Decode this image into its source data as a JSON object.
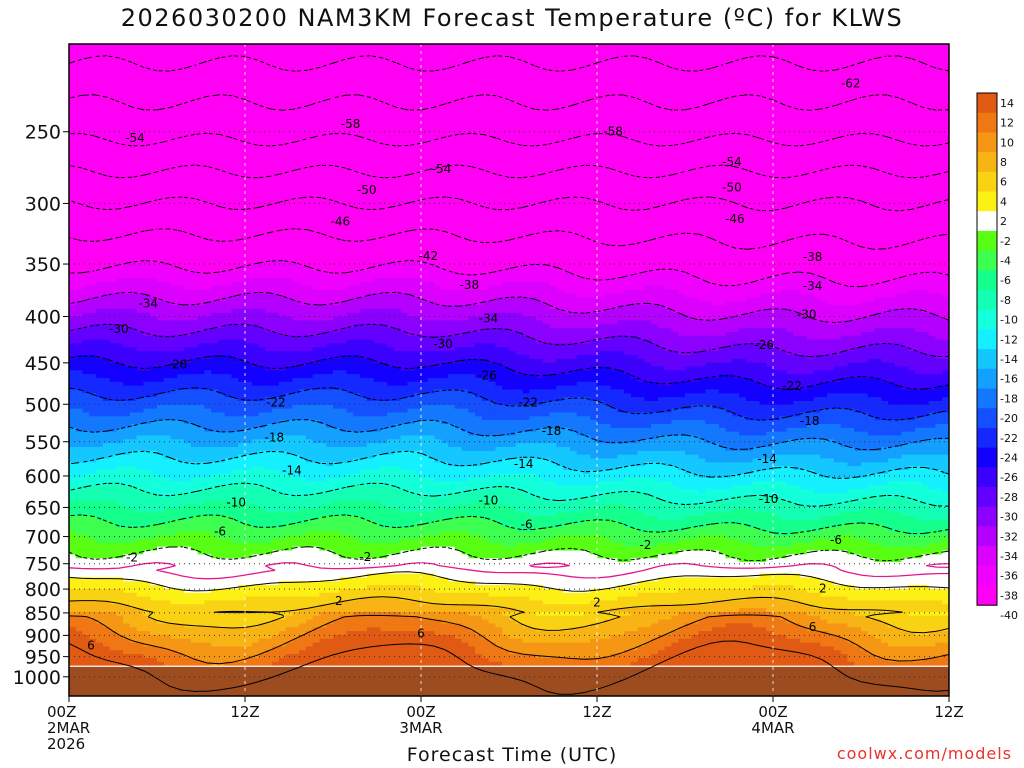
{
  "title": "2026030200 NAM3KM Forecast Temperature (ºC) for KLWS",
  "credit": "coolwx.com/models",
  "chart_data": {
    "type": "heatmap",
    "title": "2026030200 NAM3KM Forecast Temperature (ºC) for KLWS",
    "xlabel": "Forecast Time (UTC)",
    "ylabel": "",
    "x_range_hours": [
      0,
      60
    ],
    "x_ticks": [
      {
        "hour": 0,
        "lines": [
          "00Z",
          "2MAR",
          "2026"
        ]
      },
      {
        "hour": 12,
        "lines": [
          "12Z"
        ]
      },
      {
        "hour": 24,
        "lines": [
          "00Z",
          "3MAR"
        ]
      },
      {
        "hour": 36,
        "lines": [
          "12Z"
        ]
      },
      {
        "hour": 48,
        "lines": [
          "00Z",
          "4MAR"
        ]
      },
      {
        "hour": 60,
        "lines": [
          "12Z"
        ]
      }
    ],
    "y_axis": "pressure (hPa), log scale, reversed",
    "y_range": [
      1050,
      200
    ],
    "y_ticks": [
      250,
      300,
      350,
      400,
      450,
      500,
      550,
      600,
      650,
      700,
      750,
      800,
      850,
      900,
      950,
      1000
    ],
    "ground_level_hPa": 975,
    "colorbar": {
      "labels": [
        14,
        12,
        10,
        8,
        6,
        4,
        2,
        -2,
        -4,
        -6,
        -8,
        -10,
        -12,
        -14,
        -16,
        -18,
        -20,
        -22,
        -24,
        -26,
        -28,
        -30,
        -32,
        -34,
        -36,
        -38,
        -40
      ],
      "colors": [
        "#e05a14",
        "#f07814",
        "#f59614",
        "#f8b414",
        "#fad214",
        "#fcf014",
        "#ffffff",
        "#58ff14",
        "#3cff50",
        "#14ff8c",
        "#14ffb4",
        "#14ffdc",
        "#14f0ff",
        "#14c8ff",
        "#14a0ff",
        "#1478ff",
        "#1450ff",
        "#1428ff",
        "#1400ff",
        "#3c00ff",
        "#6400ff",
        "#8c00ff",
        "#b400ff",
        "#dc00ff",
        "#f000ff",
        "#ff00f5"
      ]
    },
    "contour_labels": [
      {
        "t": 1.5,
        "p": 924,
        "v": "6"
      },
      {
        "t": 4.5,
        "p": 254,
        "v": "-54"
      },
      {
        "t": 19.2,
        "p": 245,
        "v": "-58"
      },
      {
        "t": 37.1,
        "p": 250,
        "v": "-58"
      },
      {
        "t": 53.3,
        "p": 221,
        "v": "-62"
      },
      {
        "t": 25.4,
        "p": 275,
        "v": "-54"
      },
      {
        "t": 45.2,
        "p": 270,
        "v": "-54"
      },
      {
        "t": 20.3,
        "p": 290,
        "v": "-50"
      },
      {
        "t": 45.2,
        "p": 288,
        "v": "-50"
      },
      {
        "t": 18.5,
        "p": 314,
        "v": "-46"
      },
      {
        "t": 45.4,
        "p": 312,
        "v": "-46"
      },
      {
        "t": 24.5,
        "p": 343,
        "v": "-42"
      },
      {
        "t": 50.7,
        "p": 344,
        "v": "-38"
      },
      {
        "t": 27.3,
        "p": 369,
        "v": "-38"
      },
      {
        "t": 5.4,
        "p": 387,
        "v": "-34"
      },
      {
        "t": 28.6,
        "p": 402,
        "v": "-34"
      },
      {
        "t": 50.7,
        "p": 370,
        "v": "-34"
      },
      {
        "t": 3.4,
        "p": 413,
        "v": "-30"
      },
      {
        "t": 25.5,
        "p": 429,
        "v": "-30"
      },
      {
        "t": 50.3,
        "p": 398,
        "v": "-30"
      },
      {
        "t": 7.4,
        "p": 452,
        "v": "-26"
      },
      {
        "t": 28.5,
        "p": 465,
        "v": "-26"
      },
      {
        "t": 47.4,
        "p": 430,
        "v": "-26"
      },
      {
        "t": 14.1,
        "p": 498,
        "v": "-22"
      },
      {
        "t": 31.3,
        "p": 498,
        "v": "-22"
      },
      {
        "t": 49.3,
        "p": 477,
        "v": "-22"
      },
      {
        "t": 14.0,
        "p": 544,
        "v": "-18"
      },
      {
        "t": 32.9,
        "p": 535,
        "v": "-18"
      },
      {
        "t": 50.5,
        "p": 522,
        "v": "-18"
      },
      {
        "t": 15.2,
        "p": 592,
        "v": "-14"
      },
      {
        "t": 31.0,
        "p": 582,
        "v": "-14"
      },
      {
        "t": 47.6,
        "p": 575,
        "v": "-14"
      },
      {
        "t": 11.4,
        "p": 642,
        "v": "-10"
      },
      {
        "t": 28.6,
        "p": 639,
        "v": "-10"
      },
      {
        "t": 47.7,
        "p": 636,
        "v": "-10"
      },
      {
        "t": 10.3,
        "p": 691,
        "v": "-6"
      },
      {
        "t": 31.2,
        "p": 679,
        "v": "-6"
      },
      {
        "t": 52.3,
        "p": 706,
        "v": "-6"
      },
      {
        "t": 4.3,
        "p": 738,
        "v": "-2"
      },
      {
        "t": 20.2,
        "p": 737,
        "v": "-2"
      },
      {
        "t": 39.3,
        "p": 715,
        "v": "-2"
      },
      {
        "t": 18.4,
        "p": 825,
        "v": "2"
      },
      {
        "t": 36.0,
        "p": 828,
        "v": "2"
      },
      {
        "t": 51.4,
        "p": 799,
        "v": "2"
      },
      {
        "t": 24.0,
        "p": 896,
        "v": "6"
      },
      {
        "t": 50.7,
        "p": 881,
        "v": "6"
      }
    ]
  }
}
